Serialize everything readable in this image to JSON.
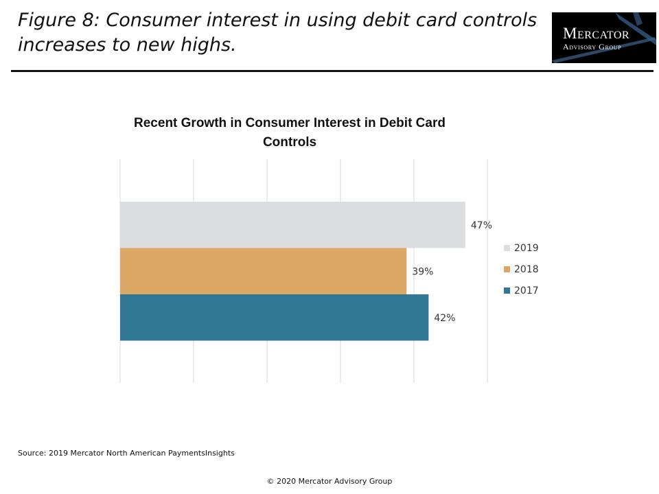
{
  "figure_title": "Figure 8: Consumer interest in using debit card controls increases to new highs.",
  "logo": {
    "line1": "Mercator",
    "line2": "Advisory Group"
  },
  "chart_data": {
    "type": "bar",
    "orientation": "horizontal",
    "title": "Recent Growth in Consumer Interest in Debit Card Controls",
    "xlabel": "",
    "ylabel": "",
    "xlim": [
      0,
      50
    ],
    "grid": true,
    "legend_position": "right",
    "series": [
      {
        "name": "2019",
        "value": 47,
        "label": "47%",
        "color": "#dcdddf"
      },
      {
        "name": "2018",
        "value": 39,
        "label": "39%",
        "color": "#dba764"
      },
      {
        "name": "2017",
        "value": 42,
        "label": "42%",
        "color": "#317897"
      }
    ]
  },
  "source": "Source: 2019 Mercator North American PaymentsInsights",
  "copyright": "© 2020 Mercator Advisory Group"
}
